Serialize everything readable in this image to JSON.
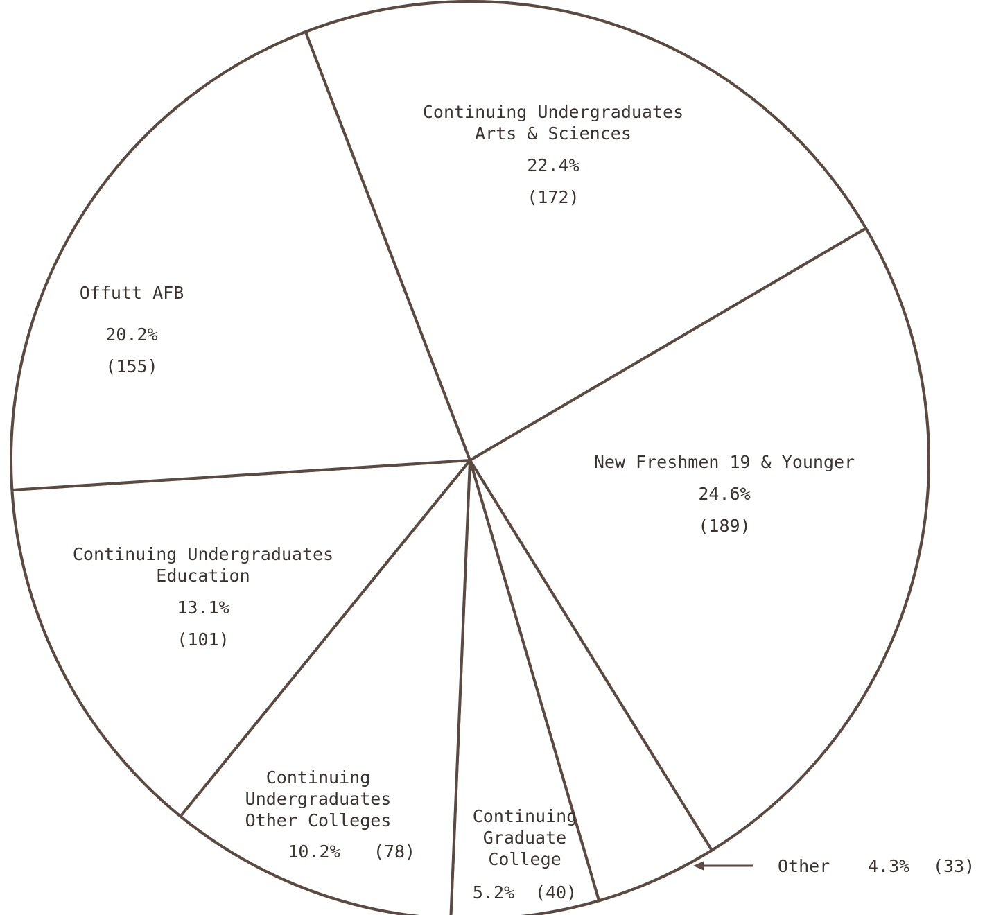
{
  "chart_data": {
    "type": "pie",
    "title": "",
    "colors": {
      "line": "#5a4a42",
      "text": "#3a3330",
      "background": "#ffffff"
    },
    "slices": [
      {
        "label": [
          "Continuing Undergraduates",
          "Arts & Sciences"
        ],
        "percent": 22.4,
        "percent_label": "22.4%",
        "count": 172,
        "count_label": "(172)"
      },
      {
        "label": [
          "New Freshmen 19 & Younger"
        ],
        "percent": 24.6,
        "percent_label": "24.6%",
        "count": 189,
        "count_label": "(189)"
      },
      {
        "label": [
          "Other"
        ],
        "percent": 4.3,
        "percent_label": "4.3%",
        "count": 33,
        "count_label": "(33)"
      },
      {
        "label": [
          "Continuing",
          "Graduate",
          "College"
        ],
        "percent": 5.2,
        "percent_label": "5.2%",
        "count": 40,
        "count_label": "(40)"
      },
      {
        "label": [
          "Continuing",
          "Undergraduates",
          "Other Colleges"
        ],
        "percent": 10.2,
        "percent_label": "10.2%",
        "count": 78,
        "count_label": "(78)"
      },
      {
        "label": [
          "Continuing Undergraduates",
          "Education"
        ],
        "percent": 13.1,
        "percent_label": "13.1%",
        "count": 101,
        "count_label": "(101)"
      },
      {
        "label": [
          "Offutt AFB"
        ],
        "percent": 20.2,
        "percent_label": "20.2%",
        "count": 155,
        "count_label": "(155)"
      }
    ]
  }
}
